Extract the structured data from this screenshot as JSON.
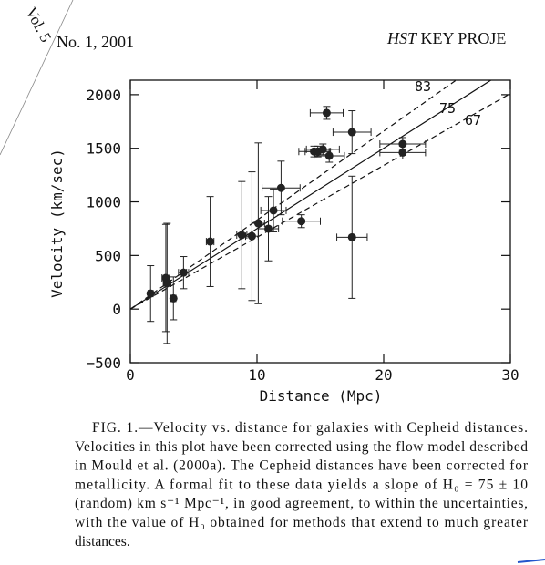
{
  "header": {
    "volume": "Vol. 5",
    "issue": "No. 1, 2001",
    "journal_italic": "HST",
    "journal_rest": "KEY PROJE"
  },
  "chart_data": {
    "type": "scatter",
    "xlabel": "Distance (Mpc)",
    "ylabel": "Velocity (km/sec)",
    "xlim": [
      0,
      30
    ],
    "ylim": [
      -500,
      2135
    ],
    "xticks": [
      0,
      10,
      20,
      30
    ],
    "yticks": [
      {
        "value": -500,
        "label": "−500"
      },
      0,
      500,
      1000,
      1500,
      2000
    ],
    "color": "#222",
    "x": [
      1.6,
      2.8,
      2.9,
      3.4,
      4.2,
      6.3,
      8.8,
      9.6,
      10.1,
      10.9,
      11.3,
      11.9,
      13.5,
      14.5,
      14.8,
      15.2,
      15.5,
      15.7,
      17.5,
      17.5,
      21.5,
      21.5
    ],
    "values": [
      145,
      290,
      240,
      100,
      340,
      630,
      690,
      680,
      800,
      750,
      920,
      1130,
      820,
      1470,
      1470,
      1490,
      1830,
      1430,
      1650,
      670,
      1540,
      1460
    ],
    "xerr": [
      0.2,
      0.3,
      0.3,
      0.2,
      0.4,
      0.3,
      0.4,
      0.5,
      0.5,
      0.8,
      1.0,
      1.5,
      1.5,
      1.2,
      1.0,
      1.3,
      1.3,
      1.2,
      1.5,
      1.2,
      1.8,
      1.8
    ],
    "yerr": [
      260,
      500,
      560,
      200,
      150,
      420,
      500,
      600,
      750,
      300,
      200,
      250,
      60,
      50,
      50,
      50,
      60,
      60,
      200,
      570,
      60,
      60
    ],
    "fits": [
      83,
      75,
      67
    ],
    "fit_styles": [
      "dashed",
      "solid",
      "dashed"
    ]
  },
  "caption": [
    "FIG. 1.—Velocity vs. distance for galaxies with Cepheid distances.",
    "Velocities in this plot have been corrected using the flow model described",
    "in Mould et al. (2000a). The Cepheid distances have been corrected for",
    "metallicity. A formal fit to these data yields a slope of H₀ = 75 ± 10",
    "(random) km s⁻¹ Mpc⁻¹, in good agreement, to within the uncertainties,",
    "with the value of H₀ obtained for methods that extend to much greater",
    "distances."
  ]
}
